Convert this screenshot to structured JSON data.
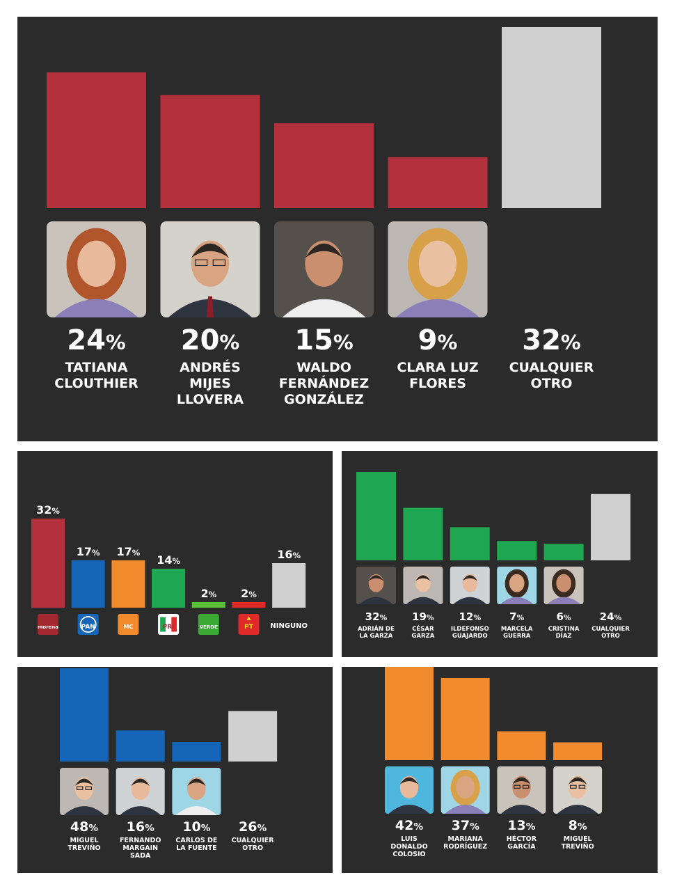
{
  "chart_data": [
    {
      "type": "bar",
      "categories": [
        "TATIANA CLOUTHIER",
        "ANDRÉS MIJES LLOVERA",
        "WALDO FERNÁNDEZ GONZÁLEZ",
        "CLARA LUZ FLORES",
        "CUALQUIER OTRO"
      ],
      "values": [
        24,
        20,
        15,
        9,
        32
      ],
      "labels": [
        "24%",
        "20%",
        "15%",
        "9%",
        "32%"
      ],
      "name_lines": [
        [
          "TATIANA",
          "CLOUTHIER"
        ],
        [
          "ANDRÉS",
          "MIJES",
          "LLOVERA"
        ],
        [
          "WALDO",
          "FERNÁNDEZ",
          "GONZÁLEZ"
        ],
        [
          "CLARA LUZ",
          "FLORES"
        ],
        [
          "CUALQUIER",
          "OTRO"
        ]
      ],
      "colors": [
        "#b3303d",
        "#b3303d",
        "#b3303d",
        "#b3303d",
        "#d0d0d0"
      ],
      "photos": [
        "woman-red-hair",
        "man-glasses-tie",
        "man-white-shirt",
        "woman-blonde",
        ""
      ],
      "ylim": [
        0,
        32
      ]
    },
    {
      "type": "bar",
      "categories": [
        "morena",
        "PAN",
        "MOVIMIENTO CIUDADANO",
        "PRI",
        "VERDE",
        "PT",
        "NINGUNO"
      ],
      "values": [
        32,
        17,
        17,
        14,
        2,
        2,
        16
      ],
      "labels": [
        "32%",
        "17%",
        "17%",
        "14%",
        "2%",
        "2%",
        "16%"
      ],
      "colors": [
        "#b3303d",
        "#1565b8",
        "#f28a2e",
        "#1fa650",
        "#5fbf3a",
        "#e02a2a",
        "#d0d0d0"
      ],
      "logos": [
        "morena-logo",
        "pan-logo",
        "mc-logo",
        "pri-logo",
        "verde-logo",
        "pt-logo",
        ""
      ],
      "logo_text": [
        "morena",
        "PAN",
        "MC",
        "PRI",
        "VERDE",
        "PT",
        "NINGUNO"
      ],
      "ylim": [
        0,
        32
      ]
    },
    {
      "type": "bar",
      "categories": [
        "ADRIÁN DE LA GARZA",
        "CÉSAR GARZA",
        "ILDEFONSO GUAJARDO",
        "MARCELA GUERRA",
        "CRISTINA DÍAZ",
        "CUALQUIER OTRO"
      ],
      "values": [
        32,
        19,
        12,
        7,
        6,
        24
      ],
      "labels": [
        "32%",
        "19%",
        "12%",
        "7%",
        "6%",
        "24%"
      ],
      "name_lines": [
        [
          "ADRIÁN DE",
          "LA GARZA"
        ],
        [
          "CÉSAR",
          "GARZA"
        ],
        [
          "ILDEFONSO",
          "GUAJARDO"
        ],
        [
          "MARCELA",
          "GUERRA"
        ],
        [
          "CRISTINA",
          "DÍAZ"
        ],
        [
          "CUALQUIER",
          "OTRO"
        ]
      ],
      "colors": [
        "#1fa650",
        "#1fa650",
        "#1fa650",
        "#1fa650",
        "#1fa650",
        "#d0d0d0"
      ],
      "photos": [
        "man-suit",
        "man-suit",
        "man-suit",
        "woman",
        "woman",
        ""
      ],
      "ylim": [
        0,
        32
      ]
    },
    {
      "type": "bar",
      "categories": [
        "MIGUEL TREVIÑO",
        "FERNANDO MARGAIN SADA",
        "CARLOS DE LA FUENTE",
        "CUALQUIER OTRO"
      ],
      "values": [
        48,
        16,
        10,
        26
      ],
      "labels": [
        "48%",
        "16%",
        "10%",
        "26%"
      ],
      "name_lines": [
        [
          "MIGUEL",
          "TREVIÑO"
        ],
        [
          "FERNANDO",
          "MARGAIN",
          "SADA"
        ],
        [
          "CARLOS DE",
          "LA FUENTE"
        ],
        [
          "CUALQUIER",
          "OTRO"
        ]
      ],
      "colors": [
        "#1565b8",
        "#1565b8",
        "#1565b8",
        "#d0d0d0"
      ],
      "photos": [
        "man-glasses",
        "man-suit",
        "man-white-shirt",
        ""
      ],
      "ylim": [
        0,
        48
      ]
    },
    {
      "type": "bar",
      "categories": [
        "LUIS DONALDO COLOSIO",
        "MARIANA RODRÍGUEZ",
        "HÉCTOR GARCÍA",
        "MIGUEL TREVIÑO"
      ],
      "values": [
        42,
        37,
        13,
        8
      ],
      "labels": [
        "42%",
        "37%",
        "13%",
        "8%"
      ],
      "name_lines": [
        [
          "LUIS",
          "DONALDO",
          "COLOSIO"
        ],
        [
          "MARIANA",
          "RODRÍGUEZ"
        ],
        [
          "HÉCTOR",
          "GARCÍA"
        ],
        [
          "MIGUEL",
          "TREVIÑO"
        ]
      ],
      "colors": [
        "#f28a2e",
        "#f28a2e",
        "#f28a2e",
        "#f28a2e"
      ],
      "photos": [
        "man-smiling",
        "woman-blonde",
        "man-glasses",
        "man-glasses"
      ],
      "ylim": [
        0,
        42
      ]
    }
  ]
}
